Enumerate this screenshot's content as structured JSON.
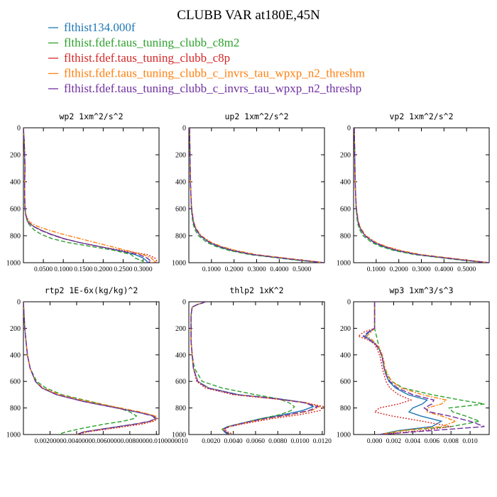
{
  "title": "CLUBB VAR at180E,45N",
  "legend": [
    {
      "name": "flthist134.000f",
      "color": "#1f77b4"
    },
    {
      "name": "flthist.fdef.taus_tuning_clubb_c8m2",
      "color": "#2ca02c"
    },
    {
      "name": "flthist.fdef.taus_tuning_clubb_c8p",
      "color": "#d62728"
    },
    {
      "name": "flthist.fdef.taus_tuning_clubb_c_invrs_tau_wpxp_n2_threshm",
      "color": "#ff7f0e"
    },
    {
      "name": "flthist.fdef.taus_tuning_clubb_c_invrs_tau_wpxp_n2_threshp",
      "color": "#7030a0"
    }
  ],
  "chart_data": [
    {
      "type": "line",
      "title": "wp2  1xm^2/s^2",
      "xlim": [
        0,
        0.34
      ],
      "ylim": [
        0,
        1000
      ],
      "y_inverted": true,
      "xticks": [
        0.05,
        0.1,
        0.15,
        0.2,
        0.25,
        0.3
      ],
      "xtick_labels": [
        "0.0500",
        "0.1000",
        "0.1500",
        "0.2000",
        "0.2500",
        "0.3000"
      ],
      "yticks": [
        0,
        200,
        400,
        600,
        800,
        1000
      ],
      "ytick_labels": [
        "0",
        "200",
        "400",
        "600",
        "800",
        "1000"
      ],
      "y": [
        0,
        100,
        200,
        300,
        400,
        500,
        600,
        650,
        700,
        730,
        760,
        790,
        820,
        850,
        880,
        910,
        940,
        965,
        990,
        1000
      ],
      "series": [
        {
          "values": [
            0,
            0.002,
            0.003,
            0.004,
            0.003,
            0.003,
            0.004,
            0.006,
            0.012,
            0.025,
            0.045,
            0.07,
            0.1,
            0.14,
            0.19,
            0.24,
            0.28,
            0.3,
            0.31,
            0.31
          ]
        },
        {
          "values": [
            0,
            0.002,
            0.003,
            0.004,
            0.003,
            0.003,
            0.004,
            0.006,
            0.01,
            0.018,
            0.028,
            0.045,
            0.07,
            0.11,
            0.17,
            0.23,
            0.27,
            0.28,
            0.3,
            0.3
          ]
        },
        {
          "values": [
            0,
            0.002,
            0.003,
            0.004,
            0.003,
            0.003,
            0.004,
            0.006,
            0.012,
            0.025,
            0.045,
            0.07,
            0.1,
            0.14,
            0.19,
            0.25,
            0.31,
            0.33,
            0.335,
            0.33
          ]
        },
        {
          "values": [
            0,
            0.002,
            0.003,
            0.004,
            0.003,
            0.003,
            0.004,
            0.007,
            0.016,
            0.035,
            0.065,
            0.1,
            0.14,
            0.18,
            0.22,
            0.26,
            0.3,
            0.32,
            0.33,
            0.32
          ]
        },
        {
          "values": [
            0,
            0.002,
            0.003,
            0.004,
            0.003,
            0.003,
            0.004,
            0.006,
            0.012,
            0.024,
            0.043,
            0.068,
            0.098,
            0.14,
            0.19,
            0.24,
            0.29,
            0.31,
            0.32,
            0.31
          ]
        }
      ]
    },
    {
      "type": "line",
      "title": "up2  1xm^2/s^2",
      "xlim": [
        0,
        0.6
      ],
      "ylim": [
        0,
        1000
      ],
      "y_inverted": true,
      "xticks": [
        0.1,
        0.2,
        0.3,
        0.4,
        0.5
      ],
      "xtick_labels": [
        "0.1000",
        "0.2000",
        "0.3000",
        "0.4000",
        "0.5000"
      ],
      "yticks": [
        0,
        200,
        400,
        600,
        800,
        1000
      ],
      "ytick_labels": [
        "0",
        "200",
        "400",
        "600",
        "800",
        "1000"
      ],
      "y": [
        0,
        100,
        200,
        300,
        400,
        500,
        600,
        700,
        750,
        800,
        850,
        880,
        910,
        940,
        960,
        980,
        1000
      ],
      "series": [
        {
          "values": [
            0.003,
            0.004,
            0.005,
            0.006,
            0.007,
            0.009,
            0.012,
            0.02,
            0.03,
            0.05,
            0.09,
            0.13,
            0.19,
            0.28,
            0.38,
            0.48,
            0.6
          ]
        },
        {
          "values": [
            0.003,
            0.004,
            0.005,
            0.006,
            0.007,
            0.009,
            0.011,
            0.017,
            0.025,
            0.042,
            0.08,
            0.12,
            0.18,
            0.27,
            0.37,
            0.47,
            0.6
          ]
        },
        {
          "values": [
            0.003,
            0.004,
            0.005,
            0.006,
            0.007,
            0.009,
            0.012,
            0.021,
            0.032,
            0.052,
            0.095,
            0.14,
            0.2,
            0.29,
            0.39,
            0.49,
            0.6
          ]
        },
        {
          "values": [
            0.003,
            0.004,
            0.005,
            0.006,
            0.007,
            0.009,
            0.013,
            0.022,
            0.034,
            0.055,
            0.1,
            0.145,
            0.21,
            0.3,
            0.4,
            0.5,
            0.6
          ]
        },
        {
          "values": [
            0.003,
            0.004,
            0.005,
            0.006,
            0.007,
            0.009,
            0.012,
            0.02,
            0.031,
            0.051,
            0.092,
            0.135,
            0.195,
            0.285,
            0.385,
            0.485,
            0.6
          ]
        }
      ]
    },
    {
      "type": "line",
      "title": "vp2  1xm^2/s^2",
      "xlim": [
        0,
        0.6
      ],
      "ylim": [
        0,
        1000
      ],
      "y_inverted": true,
      "xticks": [
        0.1,
        0.2,
        0.3,
        0.4,
        0.5
      ],
      "xtick_labels": [
        "0.1000",
        "0.2000",
        "0.3000",
        "0.4000",
        "0.5000"
      ],
      "yticks": [
        0,
        200,
        400,
        600,
        800,
        1000
      ],
      "ytick_labels": [
        "0",
        "200",
        "400",
        "600",
        "800",
        "1000"
      ],
      "y": [
        0,
        100,
        200,
        300,
        400,
        500,
        600,
        700,
        750,
        800,
        850,
        880,
        910,
        940,
        960,
        980,
        1000
      ],
      "series": [
        {
          "values": [
            0.003,
            0.004,
            0.005,
            0.006,
            0.007,
            0.009,
            0.012,
            0.02,
            0.03,
            0.05,
            0.09,
            0.13,
            0.19,
            0.28,
            0.38,
            0.48,
            0.6
          ]
        },
        {
          "values": [
            0.003,
            0.004,
            0.005,
            0.006,
            0.007,
            0.009,
            0.011,
            0.017,
            0.025,
            0.042,
            0.08,
            0.12,
            0.18,
            0.27,
            0.37,
            0.47,
            0.6
          ]
        },
        {
          "values": [
            0.003,
            0.004,
            0.005,
            0.006,
            0.007,
            0.009,
            0.012,
            0.021,
            0.032,
            0.052,
            0.095,
            0.14,
            0.2,
            0.29,
            0.39,
            0.49,
            0.6
          ]
        },
        {
          "values": [
            0.003,
            0.004,
            0.005,
            0.006,
            0.007,
            0.009,
            0.013,
            0.022,
            0.034,
            0.055,
            0.1,
            0.145,
            0.21,
            0.3,
            0.4,
            0.5,
            0.6
          ]
        },
        {
          "values": [
            0.003,
            0.004,
            0.005,
            0.006,
            0.007,
            0.009,
            0.012,
            0.02,
            0.031,
            0.051,
            0.092,
            0.135,
            0.195,
            0.285,
            0.385,
            0.485,
            0.6
          ]
        }
      ]
    },
    {
      "type": "line",
      "title": "rtp2  1E-6x(kg/kg)^2",
      "xlim": [
        0,
        0.0102
      ],
      "ylim": [
        0,
        1000
      ],
      "y_inverted": true,
      "xticks": [
        0.002,
        0.004,
        0.006,
        0.008,
        0.01
      ],
      "xtick_labels": [
        "0.0020",
        "0.0040",
        "0.0060",
        "0.0080",
        "0.0100"
      ],
      "xtick_labels_garbled": "0.00200000.00400000.00600000.00800000.0100000010",
      "yticks": [
        0,
        200,
        400,
        600,
        800,
        1000
      ],
      "ytick_labels": [
        "0",
        "200",
        "400",
        "600",
        "800",
        "1000"
      ],
      "y": [
        0,
        100,
        200,
        300,
        400,
        500,
        600,
        650,
        700,
        750,
        800,
        830,
        860,
        880,
        900,
        920,
        950,
        980,
        1000
      ],
      "series": [
        {
          "values": [
            0,
            5e-05,
            0.0001,
            0.0002,
            0.0003,
            0.0005,
            0.0009,
            0.0014,
            0.0025,
            0.0045,
            0.007,
            0.0085,
            0.0098,
            0.01,
            0.0095,
            0.0085,
            0.0065,
            0.0045,
            0.004
          ]
        },
        {
          "values": [
            0,
            5e-05,
            0.0001,
            0.0002,
            0.0003,
            0.0005,
            0.001,
            0.0017,
            0.0029,
            0.005,
            0.0072,
            0.008,
            0.0085,
            0.0083,
            0.0075,
            0.0062,
            0.0046,
            0.0032,
            0.0026
          ]
        },
        {
          "values": [
            0,
            5e-05,
            0.0001,
            0.0002,
            0.0003,
            0.0005,
            0.0009,
            0.0014,
            0.0025,
            0.0045,
            0.0071,
            0.0087,
            0.0099,
            0.0101,
            0.0098,
            0.009,
            0.007,
            0.0048,
            0.0041
          ]
        },
        {
          "values": [
            0,
            5e-05,
            0.0001,
            0.0002,
            0.0003,
            0.0005,
            0.0009,
            0.0015,
            0.0027,
            0.0048,
            0.0073,
            0.0088,
            0.0099,
            0.01,
            0.0096,
            0.0086,
            0.0066,
            0.0046,
            0.004
          ]
        },
        {
          "values": [
            0,
            5e-05,
            0.0001,
            0.0002,
            0.0003,
            0.0005,
            0.0009,
            0.0014,
            0.0025,
            0.0045,
            0.007,
            0.0085,
            0.0097,
            0.0099,
            0.0095,
            0.0085,
            0.0066,
            0.0046,
            0.004
          ]
        }
      ]
    },
    {
      "type": "line",
      "title": "thlp2  1xK^2",
      "xlim": [
        0,
        0.0122
      ],
      "ylim": [
        0,
        1000
      ],
      "y_inverted": true,
      "xticks": [
        0.002,
        0.004,
        0.006,
        0.008,
        0.01,
        0.012
      ],
      "xtick_labels": [
        "0.0020",
        "0.0040",
        "0.0060",
        "0.0080",
        "0.0100",
        "0.0120"
      ],
      "yticks": [
        0,
        200,
        400,
        600,
        800,
        1000
      ],
      "ytick_labels": [
        "0",
        "200",
        "400",
        "600",
        "800",
        "1000"
      ],
      "y": [
        0,
        10,
        20,
        40,
        100,
        200,
        300,
        400,
        500,
        600,
        650,
        700,
        730,
        760,
        790,
        820,
        850,
        880,
        910,
        940,
        960,
        980,
        1000
      ],
      "series": [
        {
          "values": [
            0.0015,
            0.0012,
            0.0008,
            0.0003,
            0.0002,
            0.0002,
            0.0002,
            0.0003,
            0.0004,
            0.0008,
            0.0018,
            0.0045,
            0.008,
            0.0105,
            0.0112,
            0.0102,
            0.0085,
            0.0065,
            0.005,
            0.0035,
            0.003,
            0.0032,
            0.0035
          ]
        },
        {
          "values": [
            0.0015,
            0.0012,
            0.0008,
            0.0003,
            0.0002,
            0.0002,
            0.0002,
            0.0003,
            0.0005,
            0.0012,
            0.003,
            0.006,
            0.008,
            0.009,
            0.0095,
            0.0092,
            0.0082,
            0.0065,
            0.005,
            0.0035,
            0.003,
            0.0033,
            0.0038
          ]
        },
        {
          "values": [
            0.0015,
            0.0012,
            0.0008,
            0.0003,
            0.0002,
            0.0002,
            0.0002,
            0.0003,
            0.0004,
            0.0007,
            0.0015,
            0.004,
            0.0075,
            0.0105,
            0.0121,
            0.0118,
            0.01,
            0.0075,
            0.0055,
            0.0037,
            0.0032,
            0.0035,
            0.004
          ]
        },
        {
          "values": [
            0.0015,
            0.0012,
            0.0008,
            0.0003,
            0.0002,
            0.0002,
            0.0002,
            0.0003,
            0.0004,
            0.0008,
            0.0017,
            0.0043,
            0.0078,
            0.0104,
            0.0118,
            0.011,
            0.0092,
            0.007,
            0.0052,
            0.0036,
            0.0031,
            0.0033,
            0.0037
          ]
        },
        {
          "values": [
            0.0015,
            0.0012,
            0.0008,
            0.0003,
            0.0002,
            0.0002,
            0.0002,
            0.0003,
            0.0004,
            0.0008,
            0.0017,
            0.0043,
            0.0078,
            0.0103,
            0.0116,
            0.0108,
            0.009,
            0.0068,
            0.0051,
            0.0036,
            0.0031,
            0.0033,
            0.0036
          ]
        }
      ]
    },
    {
      "type": "line",
      "title": "wp3  1xm^3/s^3",
      "xlim": [
        -0.0022,
        0.012
      ],
      "ylim": [
        0,
        1000
      ],
      "y_inverted": true,
      "xticks": [
        0.0,
        0.002,
        0.004,
        0.006,
        0.008,
        0.01
      ],
      "xtick_labels": [
        "0.000",
        "0.002",
        "0.004",
        "0.006",
        "0.008",
        "0.010"
      ],
      "yticks": [
        0,
        200,
        400,
        600,
        800,
        1000
      ],
      "ytick_labels": [
        "0",
        "200",
        "400",
        "600",
        "800",
        "1000"
      ],
      "y": [
        0,
        100,
        180,
        200,
        230,
        260,
        290,
        320,
        360,
        420,
        500,
        550,
        600,
        650,
        700,
        740,
        770,
        800,
        830,
        860,
        900,
        940,
        970,
        1000
      ],
      "series": [
        {
          "values": [
            0,
            0,
            0,
            0,
            -0.0006,
            -0.001,
            -0.0004,
            0.0001,
            0.0005,
            0.0008,
            0.001,
            0.0012,
            0.0015,
            0.0022,
            0.0035,
            0.0055,
            0.005,
            0.004,
            0.0036,
            0.0048,
            0.007,
            0.006,
            0.0025,
            0.0005
          ]
        },
        {
          "values": [
            0,
            0,
            0,
            0,
            0.0001,
            0.0002,
            0.0003,
            0.0004,
            0.0005,
            0.0008,
            0.001,
            0.0013,
            0.0018,
            0.003,
            0.006,
            0.009,
            0.0115,
            0.0078,
            0.0082,
            0.0095,
            0.011,
            0.008,
            0.003,
            0.0005
          ]
        },
        {
          "values": [
            0,
            0,
            0,
            0,
            -0.0012,
            -0.0017,
            -0.0006,
            0,
            0.0003,
            0.0006,
            0.0008,
            0.001,
            0.0012,
            0.0016,
            0.0025,
            0.0038,
            0.0025,
            0.0005,
            0.0,
            0.0018,
            0.005,
            0.008,
            0.005,
            0.0005
          ]
        },
        {
          "values": [
            0,
            0,
            0,
            0,
            -0.0004,
            -0.0008,
            -0.0002,
            0.0002,
            0.0006,
            0.0009,
            0.0011,
            0.0014,
            0.0018,
            0.0028,
            0.005,
            0.0075,
            0.007,
            0.0055,
            0.0055,
            0.007,
            0.0085,
            0.007,
            0.003,
            0.0005
          ]
        },
        {
          "values": [
            0,
            0,
            0,
            0,
            -0.0007,
            -0.0012,
            -0.0005,
            0.0001,
            0.0005,
            0.0008,
            0.001,
            0.0012,
            0.0016,
            0.0024,
            0.004,
            0.0062,
            0.006,
            0.0052,
            0.0058,
            0.0078,
            0.01,
            0.0115,
            0.006,
            0.0005
          ]
        }
      ]
    }
  ]
}
